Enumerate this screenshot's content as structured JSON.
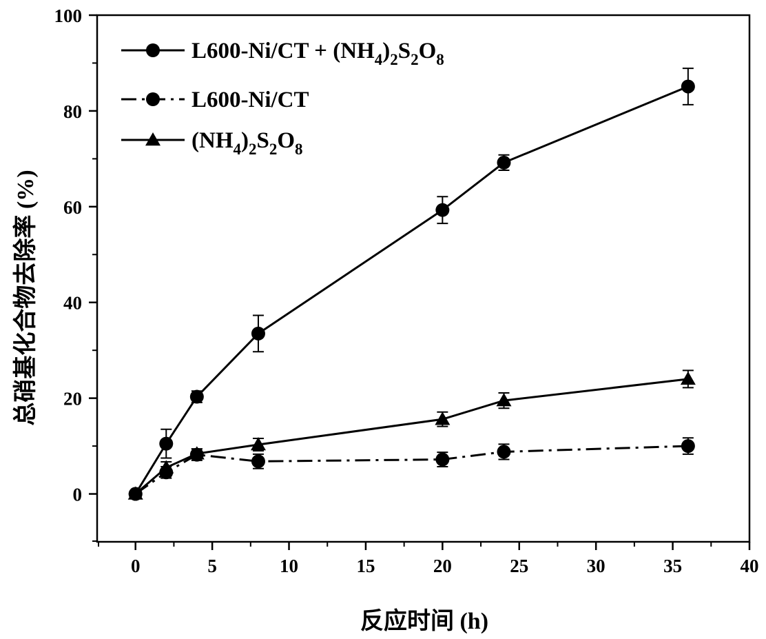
{
  "chart_data": {
    "type": "line",
    "xlabel": "反应时间 (h)",
    "ylabel": "总硝基化合物去除率 (%)",
    "xlim": [
      -2.5,
      40
    ],
    "ylim": [
      -10,
      100
    ],
    "xticks": [
      0,
      5,
      10,
      15,
      20,
      25,
      30,
      35,
      40
    ],
    "yticks": [
      0,
      20,
      40,
      60,
      80,
      100
    ],
    "legend_position": "top-left",
    "series": [
      {
        "name": "L600-Ni/CT + (NH4)2S2O8",
        "legend_parts": [
          {
            "text": "L600-Ni/CT + (NH",
            "sub": false
          },
          {
            "text": "4",
            "sub": true
          },
          {
            "text": ")",
            "sub": false
          },
          {
            "text": "2",
            "sub": true
          },
          {
            "text": "S",
            "sub": false
          },
          {
            "text": "2",
            "sub": true
          },
          {
            "text": "O",
            "sub": false
          },
          {
            "text": "8",
            "sub": true
          }
        ],
        "marker": "circle",
        "line_style": "solid",
        "x": [
          0,
          2,
          4,
          8,
          20,
          24,
          36
        ],
        "y": [
          0,
          10.5,
          20.3,
          33.5,
          59.3,
          69.2,
          85.1
        ],
        "err": [
          0,
          3.0,
          1.2,
          3.8,
          2.8,
          1.6,
          3.8
        ]
      },
      {
        "name": "L600-Ni/CT",
        "legend_parts": [
          {
            "text": "L600-Ni/CT",
            "sub": false
          }
        ],
        "marker": "circle",
        "line_style": "dash-dot",
        "x": [
          0,
          2,
          4,
          8,
          20,
          24,
          36
        ],
        "y": [
          0,
          4.5,
          8.2,
          6.8,
          7.2,
          8.8,
          10.0
        ],
        "err": [
          0,
          1.2,
          1.2,
          1.5,
          1.5,
          1.6,
          1.7
        ]
      },
      {
        "name": "(NH4)2S2O8",
        "legend_parts": [
          {
            "text": "(NH",
            "sub": false
          },
          {
            "text": "4",
            "sub": true
          },
          {
            "text": ")",
            "sub": false
          },
          {
            "text": "2",
            "sub": true
          },
          {
            "text": "S",
            "sub": false
          },
          {
            "text": "2",
            "sub": true
          },
          {
            "text": "O",
            "sub": false
          },
          {
            "text": "8",
            "sub": true
          }
        ],
        "marker": "triangle",
        "line_style": "solid",
        "x": [
          0,
          2,
          4,
          8,
          20,
          24,
          36
        ],
        "y": [
          0,
          5.5,
          8.4,
          10.3,
          15.6,
          19.5,
          24.0
        ],
        "err": [
          0,
          1.2,
          1.0,
          1.3,
          1.5,
          1.6,
          1.8
        ]
      }
    ]
  }
}
